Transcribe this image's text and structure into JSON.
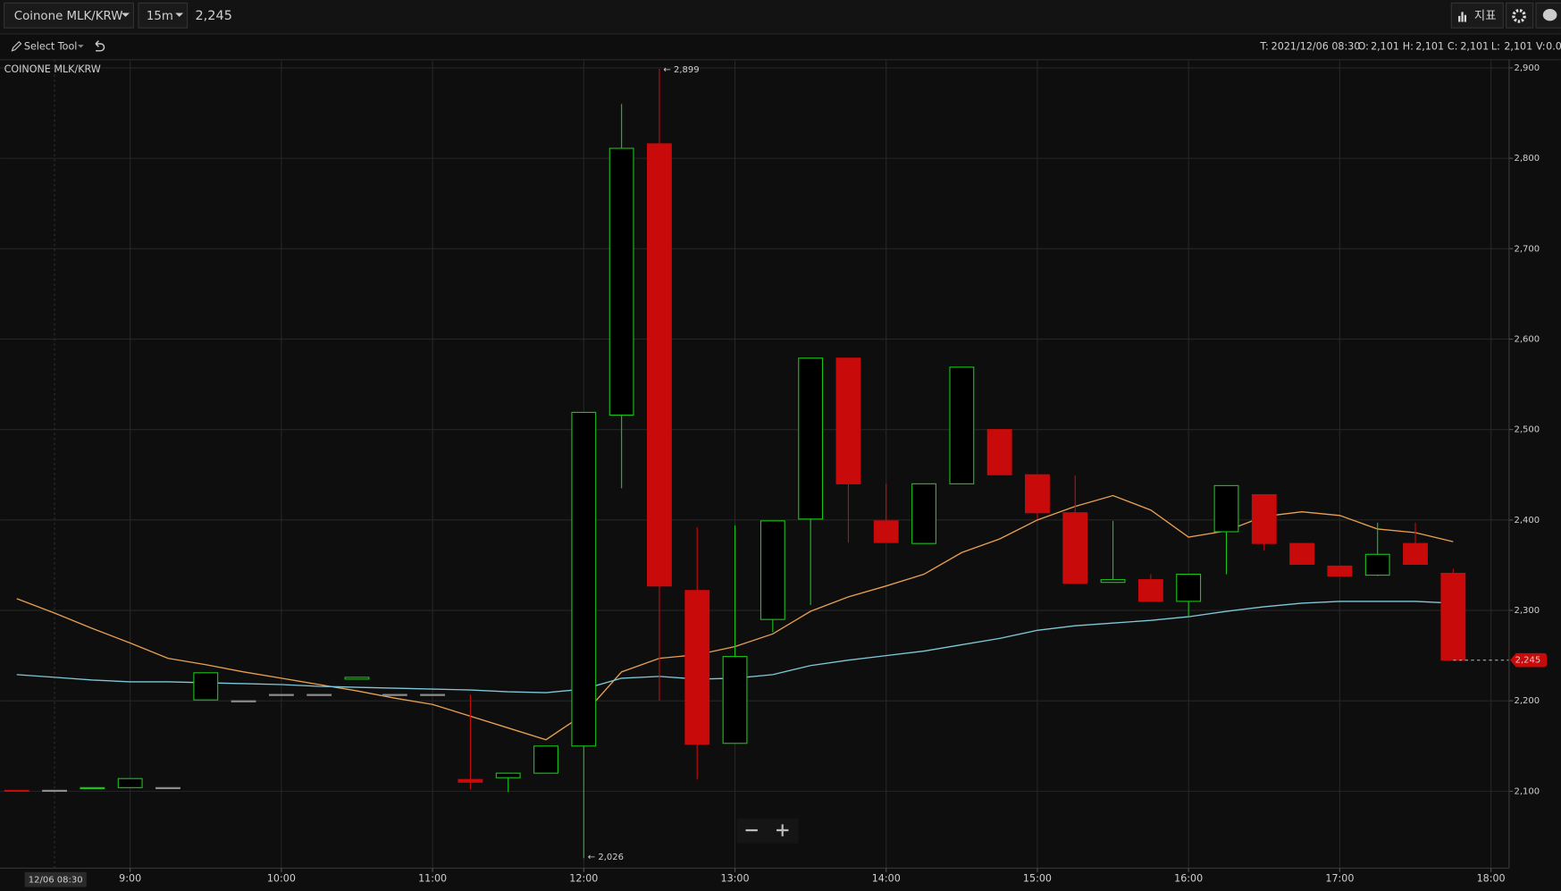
{
  "toolbar": {
    "symbol": "Coinone MLK/KRW",
    "interval": "15m",
    "price": "2,245",
    "indicators": "지표",
    "tool": "Select Tool"
  },
  "ohlc_info": [
    {
      "key": "T:",
      "value": "2021/12/06 08:30"
    },
    {
      "key": "O:",
      "value": "2,101"
    },
    {
      "key": "H:",
      "value": "2,101"
    },
    {
      "key": "C:",
      "value": "2,101"
    },
    {
      "key": "L:",
      "value": "2,101"
    },
    {
      "key": "V:",
      "value": "0.0"
    }
  ],
  "chart_data": {
    "type": "candlestick",
    "title": "COINONE MLK/KRW",
    "x": [
      8.25,
      8.5,
      8.75,
      9,
      9.25,
      9.5,
      9.75,
      10,
      10.25,
      10.5,
      10.75,
      11,
      11.25,
      11.5,
      11.75,
      12,
      12.25,
      12.5,
      12.75,
      13,
      13.25,
      13.5,
      13.75,
      14,
      14.25,
      14.5,
      14.75,
      15,
      15.25,
      15.5,
      15.75,
      16,
      16.25,
      16.5,
      16.75,
      17,
      17.25,
      17.5,
      17.75
    ],
    "open": [
      2101,
      2101,
      2103,
      2104,
      2104,
      2201,
      2200,
      2207,
      2207,
      2224,
      2207,
      2207,
      2113,
      2115,
      2120,
      2150,
      2516,
      2816,
      2322,
      2153,
      2290,
      2401,
      2579,
      2399,
      2374,
      2440,
      2500,
      2450,
      2408,
      2331,
      2334,
      2310,
      2387,
      2428,
      2374,
      2349,
      2339,
      2374,
      2341
    ],
    "high": [
      2101,
      2101,
      2104,
      2114,
      2104,
      2231,
      2200,
      2207,
      2207,
      2226,
      2207,
      2207,
      2207,
      2120,
      2150,
      2519,
      2860,
      2899,
      2392,
      2394,
      2399,
      2579,
      2579,
      2440,
      2440,
      2569,
      2500,
      2450,
      2449,
      2399,
      2340,
      2340,
      2438,
      2428,
      2374,
      2349,
      2397,
      2397,
      2346
    ],
    "low": [
      2100,
      2101,
      2103,
      2104,
      2104,
      2201,
      2200,
      2207,
      2207,
      2224,
      2207,
      2207,
      2102,
      2099,
      2120,
      2026,
      2435,
      2200,
      2113,
      2153,
      2276,
      2306,
      2375,
      2375,
      2374,
      2440,
      2450,
      2401,
      2330,
      2331,
      2310,
      2293,
      2340,
      2366,
      2351,
      2338,
      2338,
      2351,
      2245
    ],
    "close": [
      2100,
      2101,
      2104,
      2114,
      2104,
      2231,
      2200,
      2207,
      2207,
      2226,
      2207,
      2207,
      2110,
      2120,
      2150,
      2519,
      2811,
      2327,
      2152,
      2249,
      2399,
      2579,
      2440,
      2375,
      2440,
      2569,
      2450,
      2408,
      2330,
      2334,
      2310,
      2340,
      2438,
      2374,
      2351,
      2338,
      2362,
      2351,
      2245
    ],
    "up_color": "#19c319",
    "down_color": "#c80a0a",
    "flat_color": "#8c8c8c",
    "series": [
      {
        "color": "#e8a050",
        "values": [
          2313,
          2297,
          2280,
          2264,
          2247,
          2240,
          2232,
          2225,
          2218,
          2211,
          2203,
          2196,
          2183,
          2170,
          2157,
          2185,
          2232,
          2247,
          2251,
          2260,
          2274,
          2299,
          2315,
          2327,
          2340,
          2364,
          2379,
          2400,
          2415,
          2427,
          2411,
          2381,
          2388,
          2404,
          2409,
          2405,
          2390,
          2386,
          2376
        ]
      },
      {
        "color": "#7ec8d8",
        "values": [
          2229,
          2226,
          2223,
          2221,
          2221,
          2220,
          2219,
          2218,
          2216,
          2215,
          2214,
          2213,
          2212,
          2210,
          2209,
          2213,
          2225,
          2227,
          2224,
          2225,
          2229,
          2239,
          2245,
          2250,
          2255,
          2262,
          2269,
          2278,
          2283,
          2286,
          2289,
          2293,
          2299,
          2304,
          2308,
          2310,
          2310,
          2310,
          2308
        ]
      }
    ],
    "xlim": [
      8.14,
      18.12
    ],
    "xticks": [
      {
        "value": 9,
        "label": "9:00"
      },
      {
        "value": 10,
        "label": "10:00"
      },
      {
        "value": 11,
        "label": "11:00"
      },
      {
        "value": 12,
        "label": "12:00"
      },
      {
        "value": 13,
        "label": "13:00"
      },
      {
        "value": 14,
        "label": "14:00"
      },
      {
        "value": 15,
        "label": "15:00"
      },
      {
        "value": 16,
        "label": "16:00"
      },
      {
        "value": 17,
        "label": "17:00"
      },
      {
        "value": 18,
        "label": "18:00"
      }
    ],
    "ylim": [
      2015,
      2909
    ],
    "yticks": [
      {
        "value": 2100,
        "label": "2,100"
      },
      {
        "value": 2200,
        "label": "2,200"
      },
      {
        "value": 2300,
        "label": "2,300"
      },
      {
        "value": 2400,
        "label": "2,400"
      },
      {
        "value": 2500,
        "label": "2,500"
      },
      {
        "value": 2600,
        "label": "2,600"
      },
      {
        "value": 2700,
        "label": "2,700"
      },
      {
        "value": 2800,
        "label": "2,800"
      },
      {
        "value": 2900,
        "label": "2,900"
      }
    ],
    "grid": true,
    "annotations": [
      {
        "label": "← 2,899",
        "x": 12.5,
        "y": 2899
      },
      {
        "label": "← 2,026",
        "x": 12,
        "y": 2026
      }
    ],
    "last_price": {
      "value": 2245,
      "label": "2,245"
    },
    "crosshair": {
      "x": 8.5,
      "label": "12/06 08:30"
    }
  }
}
